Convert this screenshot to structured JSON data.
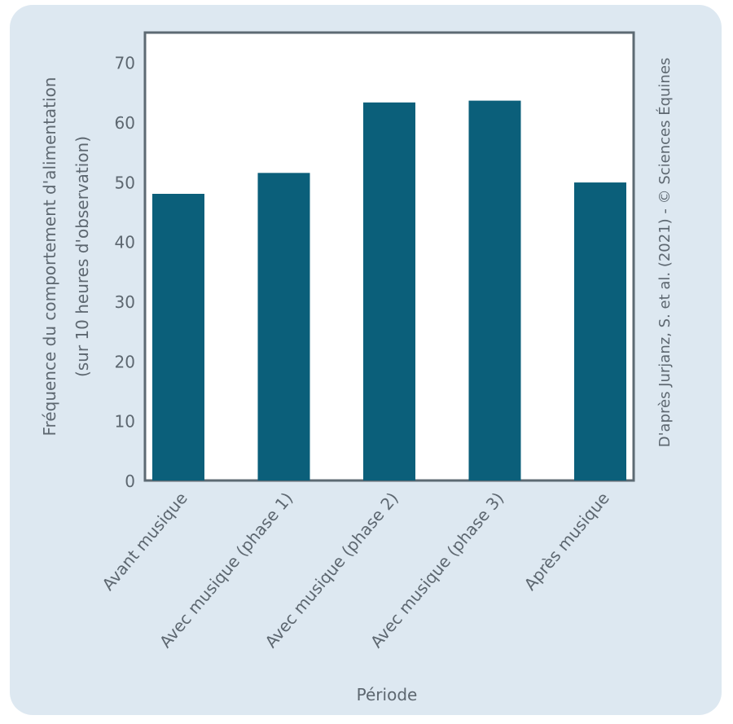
{
  "chart_data": {
    "type": "bar",
    "categories": [
      "Avant musique",
      "Avec musique (phase 1)",
      "Avec musique (phase 2)",
      "Avec musique (phase 3)",
      "Après musique"
    ],
    "values": [
      48.0,
      51.5,
      63.3,
      63.6,
      49.9
    ],
    "xlabel": "Période",
    "ylabel": [
      "Fréquence du comportement d'alimentation",
      "(sur 10 heures d'observation)"
    ],
    "ylim": [
      0,
      75
    ],
    "yticks": [
      0,
      10,
      20,
      30,
      40,
      50,
      60,
      70
    ],
    "grid": false,
    "bar_color": "#0b5f7a",
    "background_color": "#dde8f1",
    "credit": "D'après Jurjanz, S. et al. (2021) - © Sciences Équines"
  }
}
